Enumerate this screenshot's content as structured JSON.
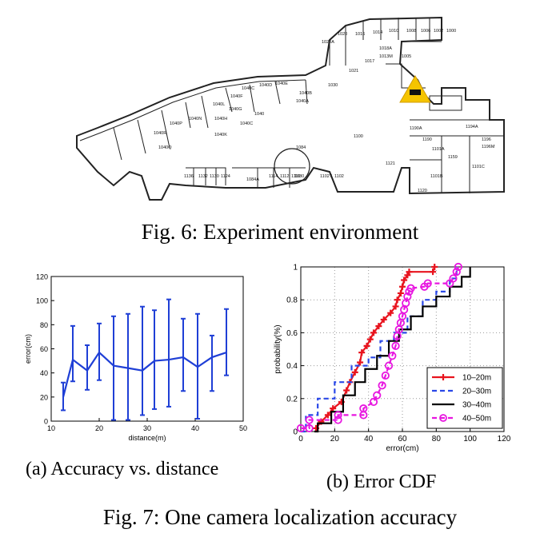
{
  "fig6": {
    "caption": "Fig. 6: Experiment environment",
    "rooms": [
      "1020",
      "1016",
      "1014",
      "1010",
      "1008",
      "1006",
      "1002",
      "1000",
      "1020A",
      "1018A",
      "1013M",
      "1005",
      "1017",
      "1021",
      "1030",
      "1040B",
      "1040E",
      "1040D",
      "1040A",
      "1040C",
      "1040F",
      "1040G",
      "1040L",
      "1040H",
      "1040",
      "1040C",
      "1040N",
      "1040P",
      "1040K",
      "1040R",
      "1040Q",
      "1190A",
      "1194A",
      "1190",
      "1196",
      "1196M",
      "1100",
      "1101A",
      "1159",
      "1084",
      "1080",
      "1121",
      "1101B",
      "1101C",
      "1136",
      "1132",
      "1130",
      "1124",
      "1084A",
      "1114",
      "1112",
      "1110",
      "1102T",
      "1102",
      "1120"
    ]
  },
  "fig7": {
    "caption": "Fig. 7: One camera localization accuracy",
    "sub_a": "(a) Accuracy vs. distance",
    "sub_b": "(b) Error CDF"
  },
  "chart_data": [
    {
      "type": "line",
      "xlabel": "distance(m)",
      "ylabel": "error(cm)",
      "xlim": [
        10,
        50
      ],
      "ylim": [
        0,
        120
      ],
      "xticks": [
        10,
        20,
        30,
        40,
        50
      ],
      "yticks": [
        0,
        20,
        40,
        60,
        80,
        100,
        120
      ],
      "grid": false,
      "error_bars": true,
      "color": "#1f3fd6",
      "points": [
        {
          "x": 12.5,
          "y": 20,
          "low": 9,
          "high": 32
        },
        {
          "x": 14.5,
          "y": 51,
          "low": 33,
          "high": 79
        },
        {
          "x": 17.5,
          "y": 42,
          "low": 26,
          "high": 63
        },
        {
          "x": 20.0,
          "y": 57,
          "low": 34,
          "high": 81
        },
        {
          "x": 23.0,
          "y": 46,
          "low": 1,
          "high": 87
        },
        {
          "x": 26.0,
          "y": 44,
          "low": 1,
          "high": 89
        },
        {
          "x": 29.0,
          "y": 42,
          "low": 5,
          "high": 95
        },
        {
          "x": 31.5,
          "y": 50,
          "low": 10,
          "high": 92
        },
        {
          "x": 34.5,
          "y": 51,
          "low": 12,
          "high": 101
        },
        {
          "x": 37.5,
          "y": 53,
          "low": 25,
          "high": 85
        },
        {
          "x": 40.5,
          "y": 45,
          "low": 2,
          "high": 89
        },
        {
          "x": 43.5,
          "y": 53,
          "low": 25,
          "high": 71
        },
        {
          "x": 46.5,
          "y": 57,
          "low": 38,
          "high": 93
        }
      ]
    },
    {
      "type": "line",
      "xlabel": "error(cm)",
      "ylabel": "probability(%)",
      "xlim": [
        0,
        120
      ],
      "ylim": [
        0,
        1
      ],
      "xticks": [
        0,
        20,
        40,
        60,
        80,
        100,
        120
      ],
      "yticks": [
        0,
        0.2,
        0.4,
        0.6,
        0.8,
        1
      ],
      "grid": true,
      "legend_position": "bottom-right",
      "series": [
        {
          "name": "10–20m",
          "color": "#e8141e",
          "dash": "",
          "marker": "plus",
          "x": [
            9,
            12,
            16,
            19,
            24,
            27,
            29,
            32,
            35,
            36,
            39,
            41,
            43,
            46,
            49,
            53,
            56,
            57,
            59,
            60,
            61,
            63,
            64,
            78,
            79
          ],
          "y": [
            0.02,
            0.06,
            0.1,
            0.14,
            0.18,
            0.25,
            0.3,
            0.36,
            0.42,
            0.48,
            0.52,
            0.56,
            0.6,
            0.64,
            0.68,
            0.72,
            0.76,
            0.8,
            0.84,
            0.88,
            0.92,
            0.95,
            0.97,
            0.97,
            1.0
          ]
        },
        {
          "name": "20–30m",
          "color": "#2a48e8",
          "dash": "6,4",
          "marker": "none",
          "x": [
            0,
            3,
            3,
            10,
            10,
            20,
            20,
            30,
            30,
            40,
            40,
            47,
            47,
            55,
            55,
            63,
            63,
            72,
            72,
            80,
            80,
            88,
            88,
            92,
            92
          ],
          "y": [
            0,
            0,
            0.1,
            0.1,
            0.2,
            0.2,
            0.3,
            0.3,
            0.4,
            0.4,
            0.45,
            0.45,
            0.55,
            0.55,
            0.6,
            0.6,
            0.7,
            0.7,
            0.8,
            0.8,
            0.85,
            0.85,
            0.93,
            0.93,
            1.0
          ]
        },
        {
          "name": "30–40m",
          "color": "#000000",
          "dash": "",
          "marker": "none",
          "x": [
            8,
            10,
            10,
            18,
            18,
            25,
            25,
            32,
            32,
            38,
            38,
            45,
            45,
            52,
            52,
            58,
            58,
            65,
            65,
            72,
            72,
            80,
            80,
            88,
            88,
            95,
            95,
            100,
            100
          ],
          "y": [
            0,
            0,
            0.05,
            0.05,
            0.12,
            0.12,
            0.22,
            0.22,
            0.3,
            0.3,
            0.38,
            0.38,
            0.46,
            0.46,
            0.55,
            0.55,
            0.62,
            0.62,
            0.7,
            0.7,
            0.76,
            0.76,
            0.82,
            0.82,
            0.88,
            0.88,
            0.94,
            0.94,
            1.0
          ]
        },
        {
          "name": "40–50m",
          "color": "#e816e0",
          "dash": "6,4",
          "marker": "circle",
          "x": [
            0,
            5,
            5,
            22,
            22,
            37,
            37,
            43,
            45,
            48,
            50,
            52,
            54,
            56,
            57,
            58,
            59,
            60,
            61,
            62,
            63,
            64,
            65,
            73,
            75,
            88,
            90,
            92,
            93
          ],
          "y": [
            0.02,
            0.02,
            0.07,
            0.07,
            0.1,
            0.1,
            0.14,
            0.18,
            0.22,
            0.28,
            0.34,
            0.4,
            0.46,
            0.52,
            0.58,
            0.62,
            0.66,
            0.7,
            0.74,
            0.78,
            0.82,
            0.85,
            0.87,
            0.88,
            0.9,
            0.9,
            0.93,
            0.97,
            1.0
          ]
        }
      ]
    }
  ]
}
